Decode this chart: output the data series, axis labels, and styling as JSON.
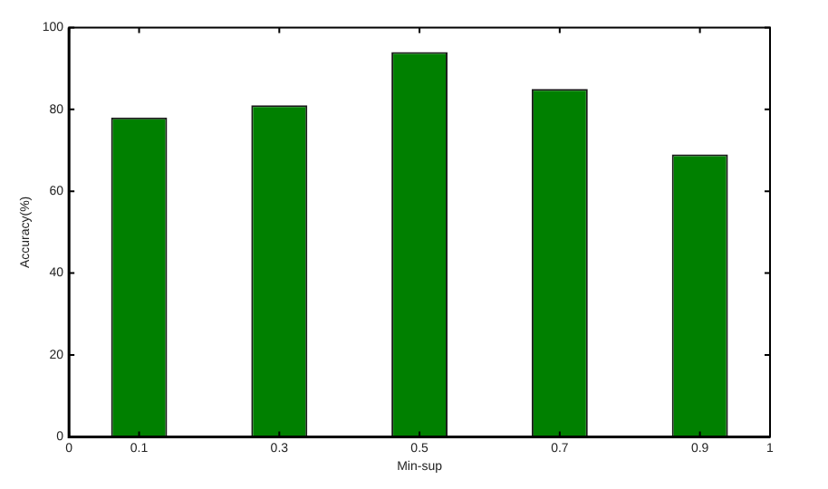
{
  "chart_data": {
    "type": "bar",
    "xlabel": "Min-sup",
    "ylabel": "Accuracy(%)",
    "x": [
      0.1,
      0.3,
      0.5,
      0.7,
      0.9
    ],
    "values": [
      78,
      81,
      94,
      85,
      69
    ],
    "color": "#008000",
    "xlim": [
      0,
      1
    ],
    "xticks": [
      0,
      0.1,
      0.3,
      0.5,
      0.7,
      0.9,
      1
    ],
    "ylim": [
      0,
      100
    ],
    "yticks": [
      0,
      20,
      40,
      60,
      80,
      100
    ],
    "grid": false,
    "legend": false
  }
}
